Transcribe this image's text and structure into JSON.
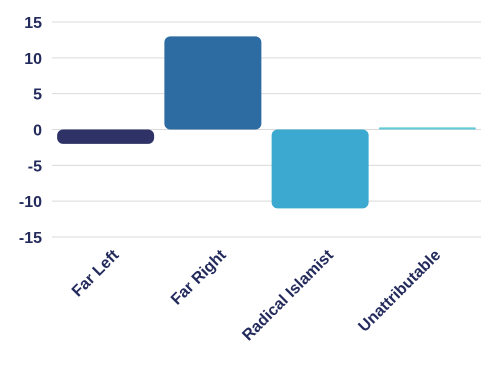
{
  "chart_data": {
    "type": "bar",
    "categories": [
      "Far Left",
      "Far Right",
      "Radical Islamist",
      "Unattributable"
    ],
    "values": [
      -2,
      13,
      -11,
      0.3
    ],
    "title": "",
    "xlabel": "",
    "ylabel": "",
    "ylim": [
      -15,
      15
    ],
    "yticks": [
      15,
      10,
      5,
      0,
      -5,
      -10,
      -15
    ],
    "ytick_labels": [
      "15",
      "10",
      "5",
      "0",
      "-5",
      "-10",
      "-15"
    ],
    "grid": true,
    "legend": "none",
    "bar_colors": [
      "#2e3266",
      "#2c6ca3",
      "#3ba9d0",
      "#62c9d6"
    ],
    "text_color": "#232a5c",
    "grid_color": "#d9d9d9"
  }
}
